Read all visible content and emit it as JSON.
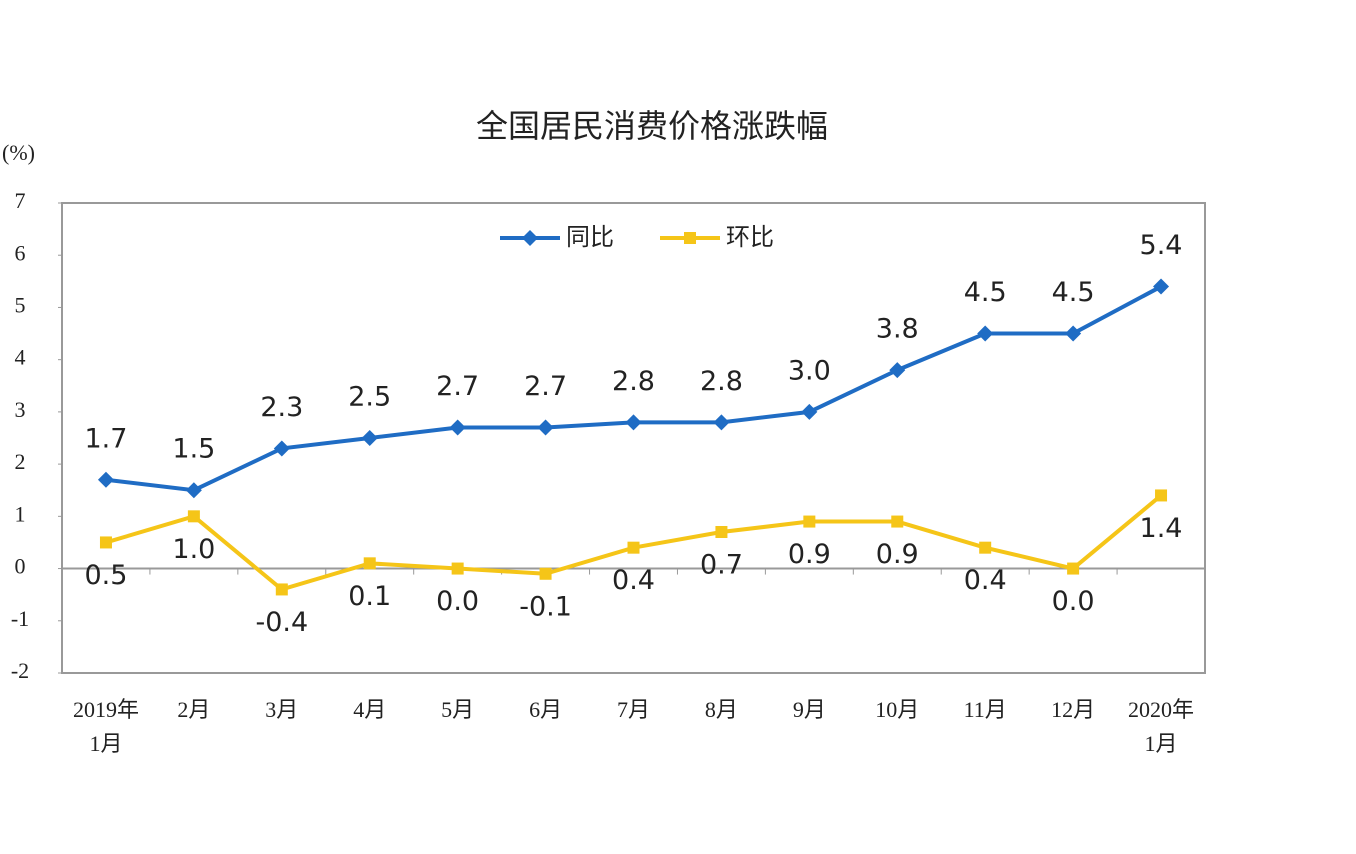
{
  "chart_data": {
    "type": "line",
    "title": "全国居民消费价格涨跌幅",
    "y_label": "(%)",
    "categories": [
      "2019年\n1月",
      "2月",
      "3月",
      "4月",
      "5月",
      "6月",
      "7月",
      "8月",
      "9月",
      "10月",
      "11月",
      "12月",
      "2020年\n1月"
    ],
    "series": [
      {
        "name": "同比",
        "color": "#1f6cc4",
        "marker": "diamond",
        "values": [
          1.7,
          1.5,
          2.3,
          2.5,
          2.7,
          2.7,
          2.8,
          2.8,
          3.0,
          3.8,
          4.5,
          4.5,
          5.4
        ],
        "value_labels": [
          "1.7",
          "1.5",
          "2.3",
          "2.5",
          "2.7",
          "2.7",
          "2.8",
          "2.8",
          "3.0",
          "3.8",
          "4.5",
          "4.5",
          "5.4"
        ]
      },
      {
        "name": "环比",
        "color": "#f5c518",
        "marker": "square",
        "values": [
          0.5,
          1.0,
          -0.4,
          0.1,
          0.0,
          -0.1,
          0.4,
          0.7,
          0.9,
          0.9,
          0.4,
          0.0,
          1.4
        ],
        "value_labels": [
          "0.5",
          "1.0",
          "-0.4",
          "0.1",
          "0.0",
          "-0.1",
          "0.4",
          "0.7",
          "0.9",
          "0.9",
          "0.4",
          "0.0",
          "1.4"
        ]
      }
    ],
    "ylim": [
      -2,
      7
    ],
    "yticks": [
      -2,
      -1,
      0,
      1,
      2,
      3,
      4,
      5,
      6,
      7
    ],
    "grid": false,
    "legend": "top"
  }
}
